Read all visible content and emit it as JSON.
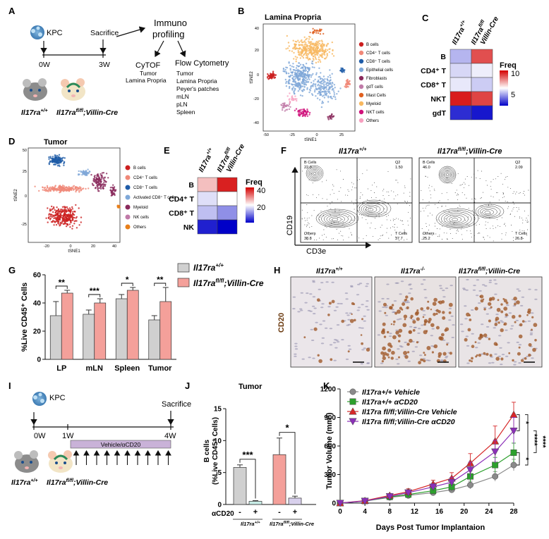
{
  "panels": [
    "A",
    "B",
    "C",
    "D",
    "E",
    "F",
    "G",
    "H",
    "I",
    "J",
    "K"
  ],
  "panel_a": {
    "kpc": "KPC",
    "sacrifice": "Sacrifice",
    "t0": "0W",
    "t3": "3W",
    "immuno1": "Immuno",
    "immuno2": "profiling",
    "cytof": "CyTOF",
    "cytof_items": [
      "Tumor",
      "Lamina Propria"
    ],
    "flow": "Flow Cytometry",
    "flow_items": [
      "Tumor",
      "Lamina Propria",
      "Peyer's patches",
      "mLN",
      "pLN",
      "Spleen"
    ],
    "mouse1": "Il17ra",
    "mouse1_sup": "+/+",
    "mouse2": "Il17ra",
    "mouse2_sup": "fl/fl",
    "mouse2_suffix": ";Villin-Cre"
  },
  "panel_b": {
    "title": "Lamina Propria",
    "xlabel": "tSNE1",
    "ylabel": "tSNE2",
    "xticks": [
      "-50",
      "-25",
      "0",
      "25"
    ],
    "yticks": [
      "40",
      "20",
      "0",
      "-20",
      "-40"
    ],
    "legend": [
      {
        "label": "B cells",
        "color": "#cc1f1f"
      },
      {
        "label": "CD4⁺ T cells",
        "color": "#f08878"
      },
      {
        "label": "CD8⁺ T cells",
        "color": "#1f5ca8"
      },
      {
        "label": "Epithelial cells",
        "color": "#7fa8d8"
      },
      {
        "label": "Fibroblasts",
        "color": "#8a2a5c"
      },
      {
        "label": "gdT cells",
        "color": "#c07aa8"
      },
      {
        "label": "Mast Cells",
        "color": "#e06020"
      },
      {
        "label": "Myeloid",
        "color": "#f8b860"
      },
      {
        "label": "NKT cells",
        "color": "#d0107a"
      },
      {
        "label": "Others",
        "color": "#f7a0c0"
      }
    ]
  },
  "panel_c": {
    "cols": [
      "Il17ra+/+",
      "Il17ra fl/fl Villin-Cre"
    ],
    "rows": [
      "B",
      "CD4⁺ T",
      "CD8⁺ T",
      "NKT",
      "gdT"
    ],
    "values": [
      [
        4.2,
        8.6
      ],
      [
        4.8,
        5.2
      ],
      [
        5.1,
        4.6
      ],
      [
        9.5,
        8.8
      ],
      [
        1.8,
        1.4
      ]
    ],
    "legend_title": "Freq",
    "legend_ticks": [
      "10",
      "5"
    ],
    "range": [
      1,
      10
    ]
  },
  "panel_d": {
    "title": "Tumor",
    "xlabel": "tSNE1",
    "ylabel": "tSNE2",
    "xticks": [
      "-20",
      "0",
      "20",
      "40"
    ],
    "yticks": [
      "50",
      "25",
      "0",
      "-25"
    ],
    "legend": [
      {
        "label": "B cells",
        "color": "#cc1f1f"
      },
      {
        "label": "CD4⁺ T cells",
        "color": "#f08878"
      },
      {
        "label": "CD8⁺ T cells",
        "color": "#1f5ca8"
      },
      {
        "label": "Activated CD8⁺ T cells",
        "color": "#7fa8d8"
      },
      {
        "label": "Myeloid",
        "color": "#8a2a5c"
      },
      {
        "label": "NK cells",
        "color": "#c07aa8"
      },
      {
        "label": "Others",
        "color": "#e8801a"
      }
    ]
  },
  "panel_e": {
    "rows": [
      "B",
      "CD4⁺ T",
      "CD8⁺ T",
      "NK"
    ],
    "values": [
      [
        28,
        38
      ],
      [
        22,
        24
      ],
      [
        20,
        17
      ],
      [
        10,
        8
      ]
    ],
    "legend_title": "Freq",
    "legend_ticks": [
      "40",
      "20"
    ],
    "range": [
      8,
      40
    ]
  },
  "panel_f": {
    "title1": "Il17ra",
    "title1_sup": "+/+",
    "title2": "Il17ra",
    "title2_sup": "fl/fl",
    "title2_suffix": ";Villin-Cre",
    "xlabel": "CD3e",
    "ylabel": "CD19",
    "plot1": {
      "bcells": "22.0",
      "q2": "1.50",
      "others": "38.8",
      "tcells": "37.7"
    },
    "plot2": {
      "bcells": "46.0",
      "q2": "2.09",
      "others": "25.2",
      "tcells": "26.8"
    },
    "q_labels": {
      "b": "B Cells",
      "q2": "Q2",
      "o": "Others",
      "t": "T Cells"
    }
  },
  "chart_data": [
    {
      "type": "bar",
      "panel": "G",
      "categories": [
        "LP",
        "mLN",
        "Spleen",
        "Tumor"
      ],
      "series": [
        {
          "name": "Il17ra+/+",
          "color": "#d0d0d0",
          "values": [
            31,
            32,
            43,
            28
          ],
          "errors": [
            10,
            3,
            3,
            3
          ]
        },
        {
          "name": "Il17ra fl/fl;Villin-Cre",
          "color": "#f4a09a",
          "values": [
            47,
            40,
            49,
            41
          ],
          "errors": [
            2,
            3,
            2,
            10
          ]
        }
      ],
      "ylabel": "%Live CD45⁺ Cells",
      "ylim": [
        0,
        60
      ],
      "yticks": [
        "0",
        "20",
        "40",
        "60"
      ],
      "significance": [
        "**",
        "***",
        "*",
        "**"
      ]
    },
    {
      "type": "bar",
      "panel": "J",
      "title": "Tumor",
      "categories": [
        "-",
        "+",
        "-",
        "+"
      ],
      "values": [
        5.8,
        0.5,
        7.8,
        1.0
      ],
      "errors": [
        0.4,
        0.1,
        2.6,
        0.3
      ],
      "colors": [
        "#d0d0d0",
        "#c8ece6",
        "#f4a09a",
        "#d8d0ec"
      ],
      "ylabel1": "B cells",
      "ylabel2": "(%Live CD45⁺ Cells)",
      "xlabel": "αCD20",
      "ylim": [
        0,
        15
      ],
      "yticks": [
        "0",
        "5",
        "10",
        "15"
      ],
      "group_labels": [
        "Il17ra+/+",
        "Il17ra fl/fl;Villin-Cre"
      ],
      "significance": [
        "***",
        "*"
      ]
    },
    {
      "type": "line",
      "panel": "K",
      "x": [
        0,
        4,
        8,
        11,
        15,
        18,
        21,
        25,
        28
      ],
      "series": [
        {
          "name": "Il17ra+/+ Vehicle",
          "color": "#8a8a8a",
          "marker": "circle",
          "values": [
            0,
            20,
            60,
            80,
            110,
            140,
            190,
            280,
            400
          ],
          "errors": [
            0,
            10,
            15,
            20,
            25,
            30,
            40,
            50,
            60
          ]
        },
        {
          "name": "Il17ra+/+ αCD20",
          "color": "#2ca02c",
          "marker": "square",
          "values": [
            0,
            22,
            65,
            90,
            130,
            170,
            280,
            400,
            530
          ],
          "errors": [
            0,
            10,
            15,
            25,
            30,
            40,
            60,
            80,
            100
          ]
        },
        {
          "name": "Il17ra fl/fl;Villin-Cre Vehicle",
          "color": "#d62728",
          "marker": "triangle-up",
          "values": [
            0,
            25,
            80,
            120,
            200,
            260,
            420,
            650,
            930
          ],
          "errors": [
            0,
            10,
            20,
            30,
            40,
            60,
            100,
            160,
            130
          ]
        },
        {
          "name": "Il17ra fl/fl;Villin-Cre αCD20",
          "color": "#8b2fb8",
          "marker": "triangle-down",
          "values": [
            0,
            22,
            70,
            110,
            170,
            220,
            350,
            540,
            760
          ],
          "errors": [
            0,
            10,
            15,
            25,
            35,
            50,
            80,
            120,
            140
          ]
        }
      ],
      "xlabel": "Days Post Tumor Implantaion",
      "ylabel": "Tumor Volume (mm³)",
      "xlim": [
        0,
        28
      ],
      "ylim": [
        0,
        1200
      ],
      "xticks": [
        "0",
        "4",
        "8",
        "12",
        "16",
        "20",
        "24",
        "28"
      ],
      "yticks": [
        "0",
        "300",
        "600",
        "900",
        "1200"
      ],
      "significance": [
        "*",
        "****",
        "*",
        "****"
      ]
    }
  ],
  "panel_g_legend": [
    "Il17ra",
    "+/+",
    "Il17ra",
    "fl/fl",
    ";Villin-Cre"
  ],
  "panel_h": {
    "titles": [
      "Il17ra",
      "Il17ra",
      "Il17ra"
    ],
    "sups": [
      "+/+",
      "-/-",
      "fl/fl"
    ],
    "suffix3": ";Villin-Cre",
    "ylabel": "CD20"
  },
  "panel_i": {
    "kpc": "KPC",
    "sacrifice": "Sacrifice",
    "t0": "0W",
    "t1": "1W",
    "t4": "4W",
    "treatment": "Vehicle/αCD20",
    "mouse1": "Il17ra",
    "mouse1_sup": "+/+",
    "mouse2": "Il17ra",
    "mouse2_sup": "fl/fl",
    "mouse2_suffix": ";Villin-Cre"
  }
}
